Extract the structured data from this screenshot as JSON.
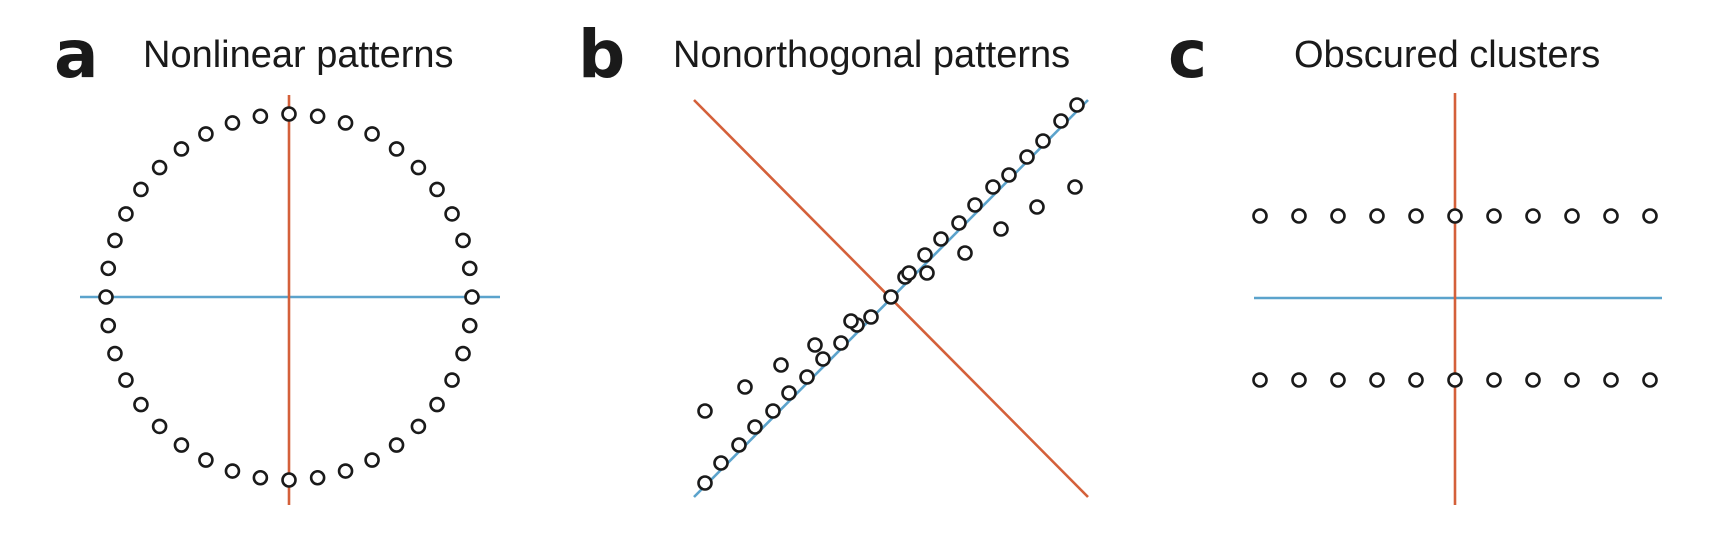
{
  "panels": [
    {
      "letter": "a",
      "title": "Nonlinear patterns"
    },
    {
      "letter": "b",
      "title": "Nonorthogonal patterns"
    },
    {
      "letter": "c",
      "title": "Obscured clusters"
    }
  ],
  "colors": {
    "first_axis": "#5ba3cc",
    "second_axis": "#d4603a",
    "points": "#1a1a1a",
    "background": "#ffffff"
  },
  "panel_a": {
    "shape": "circle",
    "point_count": 40
  },
  "panel_b": {
    "points": [
      [
        -0.93,
        -0.93
      ],
      [
        -0.85,
        -0.83
      ],
      [
        -0.76,
        -0.74
      ],
      [
        -0.68,
        -0.65
      ],
      [
        -0.59,
        -0.57
      ],
      [
        -0.51,
        -0.48
      ],
      [
        -0.42,
        -0.4
      ],
      [
        -0.34,
        -0.31
      ],
      [
        -0.25,
        -0.23
      ],
      [
        -0.17,
        -0.14
      ],
      [
        0.0,
        0.0
      ],
      [
        0.07,
        0.1
      ],
      [
        0.17,
        0.21
      ],
      [
        0.25,
        0.29
      ],
      [
        0.34,
        0.37
      ],
      [
        0.42,
        0.46
      ],
      [
        0.51,
        0.55
      ],
      [
        0.59,
        0.61
      ],
      [
        0.68,
        0.7
      ],
      [
        0.76,
        0.78
      ],
      [
        0.85,
        0.88
      ],
      [
        0.93,
        0.96
      ],
      [
        -0.93,
        -0.57
      ],
      [
        -0.73,
        -0.45
      ],
      [
        -0.55,
        -0.34
      ],
      [
        -0.38,
        -0.24
      ],
      [
        -0.2,
        -0.12
      ],
      [
        0.18,
        0.12
      ],
      [
        0.37,
        0.22
      ],
      [
        0.55,
        0.34
      ],
      [
        0.73,
        0.45
      ],
      [
        0.92,
        0.55
      ],
      [
        -0.1,
        -0.1
      ],
      [
        0.09,
        0.12
      ]
    ]
  },
  "panel_c": {
    "rows": [
      1,
      -1
    ],
    "x_values": [
      -5,
      -4,
      -3,
      -2,
      -1,
      0,
      1,
      2,
      3,
      4,
      5
    ]
  }
}
